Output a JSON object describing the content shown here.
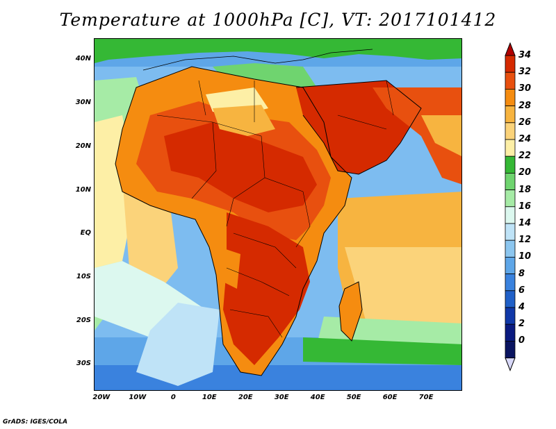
{
  "title": "Temperature at 1000hPa [C], VT: 2017101412",
  "credit": "GrADS: IGES/COLA",
  "map": {
    "lon_range": [
      -22,
      80
    ],
    "lat_range": [
      -36,
      45
    ],
    "lon_ticks": [
      "20W",
      "10W",
      "0",
      "10E",
      "20E",
      "30E",
      "40E",
      "50E",
      "60E",
      "70E"
    ],
    "lon_tick_values": [
      -20,
      -10,
      0,
      10,
      20,
      30,
      40,
      50,
      60,
      70
    ],
    "lat_ticks": [
      "40N",
      "30N",
      "20N",
      "10N",
      "EQ",
      "10S",
      "20S",
      "30S"
    ],
    "lat_tick_values": [
      40,
      30,
      20,
      10,
      0,
      -10,
      -20,
      -30
    ]
  },
  "colorbar": {
    "unit": "C",
    "labels": [
      "34",
      "32",
      "30",
      "28",
      "26",
      "24",
      "22",
      "20",
      "18",
      "16",
      "14",
      "12",
      "10",
      "8",
      "6",
      "4",
      "2",
      "0"
    ],
    "colors": [
      "#b00000",
      "#d52a00",
      "#e8500f",
      "#f58c10",
      "#f7b440",
      "#fbd37a",
      "#fdefa6",
      "#35b835",
      "#6fd46f",
      "#a6eba6",
      "#dcf8ef",
      "#bfe3f7",
      "#8cc6ef",
      "#5ea6e8",
      "#3a82de",
      "#2060c8",
      "#1038a8",
      "#0a1a80",
      "#0a1460"
    ],
    "min_arrow_color": "#d8d8f8"
  }
}
